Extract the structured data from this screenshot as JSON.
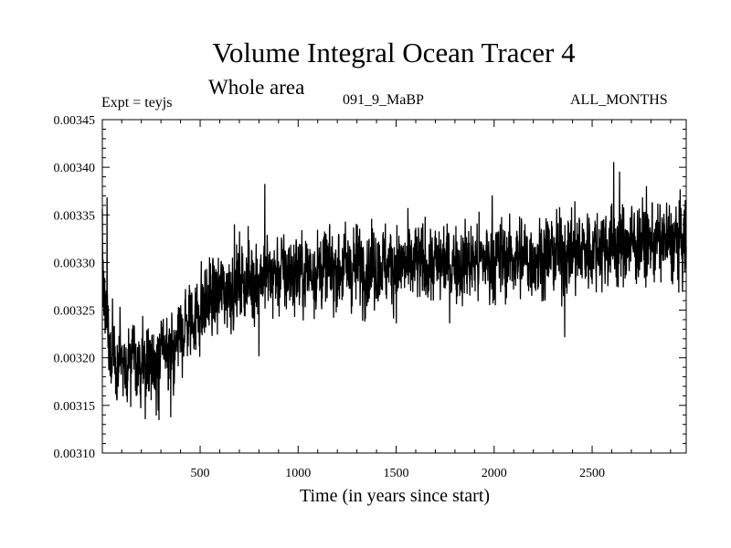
{
  "chart_data": {
    "type": "line",
    "title": "Volume Integral Ocean Tracer 4",
    "subtitle": "Whole area",
    "experiment_label": "Expt = teyjs",
    "run_label": "091_9_MaBP",
    "period_label": "ALL_MONTHS",
    "xlabel": "Time (in years since start)",
    "ylabel": "",
    "xlim": [
      1,
      2980
    ],
    "ylim": [
      0.0031,
      0.00345
    ],
    "x_ticks": [
      500,
      1000,
      1500,
      2000,
      2500
    ],
    "x_tick_labels": [
      "500",
      "1000",
      "1500",
      "2000",
      "2500"
    ],
    "y_ticks": [
      0.0031,
      0.00315,
      0.0032,
      0.00325,
      0.0033,
      0.00335,
      0.0034,
      0.00345
    ],
    "y_tick_labels": [
      "0.00310",
      "0.00315",
      "0.00320",
      "0.00325",
      "0.00330",
      "0.00335",
      "0.00340",
      "0.00345"
    ],
    "series": [
      {
        "name": "Ocean Tracer 4 volume integral",
        "color": "#000000",
        "trend_x": [
          1,
          10,
          30,
          60,
          100,
          150,
          200,
          250,
          300,
          350,
          400,
          450,
          500,
          550,
          600,
          700,
          800,
          900,
          1000,
          1200,
          1400,
          1600,
          1800,
          2000,
          2200,
          2400,
          2600,
          2800,
          2980
        ],
        "trend_y": [
          0.00333,
          0.00327,
          0.00322,
          0.0032,
          0.003195,
          0.003195,
          0.003195,
          0.003195,
          0.0032,
          0.00321,
          0.003225,
          0.00324,
          0.00325,
          0.00326,
          0.003268,
          0.00328,
          0.003285,
          0.003288,
          0.00329,
          0.003295,
          0.003297,
          0.003298,
          0.0033,
          0.003303,
          0.003306,
          0.00331,
          0.003318,
          0.003322,
          0.003322
        ],
        "noise_amplitude": 3.5e-05,
        "highlight_peaks_x": [
          830,
          2610,
          25,
          1990,
          2640
        ],
        "highlight_peaks_y": [
          0.003382,
          0.003405,
          0.003368,
          0.00337,
          0.003395
        ],
        "highlight_troughs_x": [
          220,
          290,
          350,
          800,
          2360
        ],
        "highlight_troughs_y": [
          0.003136,
          0.003135,
          0.003138,
          0.003202,
          0.003222
        ]
      }
    ]
  }
}
